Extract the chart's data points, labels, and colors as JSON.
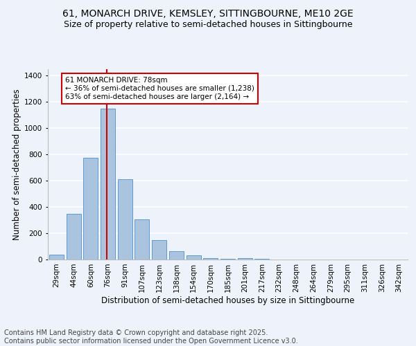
{
  "title_line1": "61, MONARCH DRIVE, KEMSLEY, SITTINGBOURNE, ME10 2GE",
  "title_line2": "Size of property relative to semi-detached houses in Sittingbourne",
  "xlabel": "Distribution of semi-detached houses by size in Sittingbourne",
  "ylabel": "Number of semi-detached properties",
  "footer": "Contains HM Land Registry data © Crown copyright and database right 2025.\nContains public sector information licensed under the Open Government Licence v3.0.",
  "categories": [
    "29sqm",
    "44sqm",
    "60sqm",
    "76sqm",
    "91sqm",
    "107sqm",
    "123sqm",
    "138sqm",
    "154sqm",
    "170sqm",
    "185sqm",
    "201sqm",
    "217sqm",
    "232sqm",
    "248sqm",
    "264sqm",
    "279sqm",
    "295sqm",
    "311sqm",
    "326sqm",
    "342sqm"
  ],
  "values": [
    35,
    350,
    775,
    1150,
    610,
    305,
    150,
    65,
    30,
    12,
    5,
    10,
    3,
    1,
    1,
    0,
    0,
    0,
    0,
    0,
    0
  ],
  "bar_color": "#aac4e0",
  "bar_edge_color": "#5b9bd5",
  "red_line_index": 3,
  "annotation_text": "61 MONARCH DRIVE: 78sqm\n← 36% of semi-detached houses are smaller (1,238)\n63% of semi-detached houses are larger (2,164) →",
  "annotation_box_color": "#ffffff",
  "annotation_box_edge": "#cc0000",
  "ylim": [
    0,
    1450
  ],
  "yticks": [
    0,
    200,
    400,
    600,
    800,
    1000,
    1200,
    1400
  ],
  "background_color": "#eef2fb",
  "grid_color": "#ffffff",
  "title_fontsize": 10,
  "subtitle_fontsize": 9,
  "axis_label_fontsize": 8.5,
  "tick_fontsize": 7.5,
  "footer_fontsize": 7
}
